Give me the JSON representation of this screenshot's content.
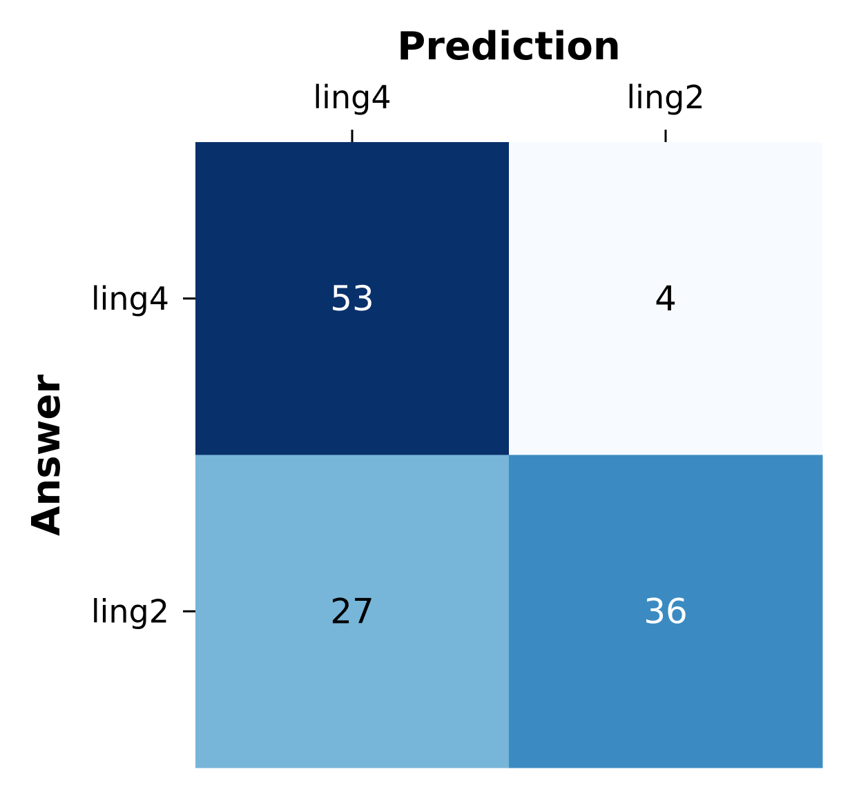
{
  "chart_data": {
    "type": "heatmap",
    "title": "",
    "xlabel": "Prediction",
    "ylabel": "Answer",
    "x_categories": [
      "ling4",
      "ling2"
    ],
    "y_categories": [
      "ling4",
      "ling2"
    ],
    "values": [
      [
        53,
        4
      ],
      [
        27,
        36
      ]
    ],
    "colormap": "Blues",
    "color_min_hex": "#f7fbff",
    "color_max_hex": "#08306b",
    "annotation_light_color": "#ffffff",
    "annotation_dark_color": "#000000",
    "x_axis_position": "top",
    "colorbar": false,
    "grid": false
  }
}
